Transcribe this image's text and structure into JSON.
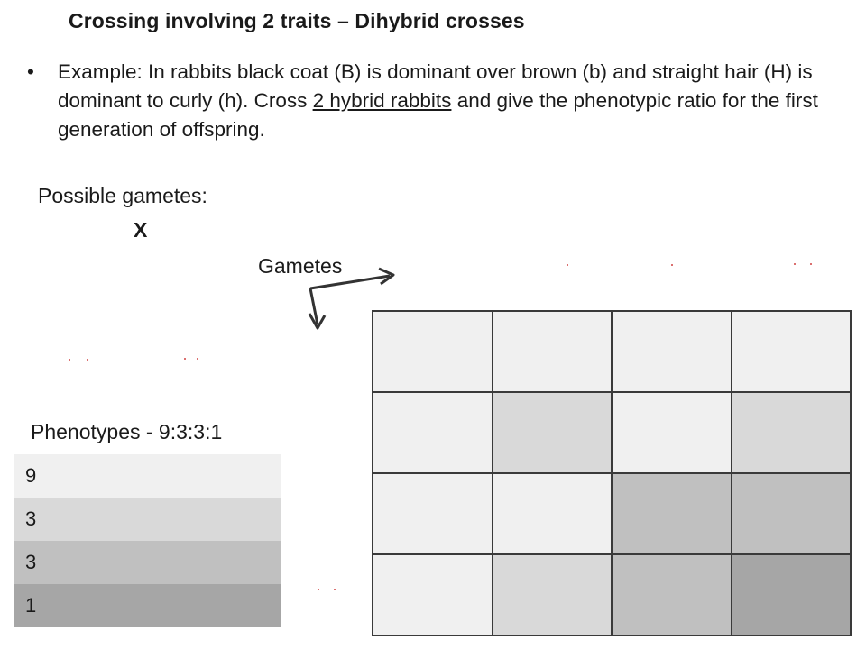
{
  "slide": {
    "title": "Crossing involving 2 traits – Dihybrid crosses",
    "bullet": {
      "marker": "•",
      "text_before": "Example: In rabbits black coat (B) is dominant over brown (b) and straight hair (H) is dominant to curly (h). Cross ",
      "text_underlined": "2 hybrid rabbits",
      "text_after": " and give the phenotypic ratio for the first generation of offspring."
    },
    "possible_gametes_label": "Possible gametes:",
    "cross_symbol": "X",
    "gametes_label": "Gametes",
    "phenotypes_title": "Phenotypes - 9:3:3:1"
  },
  "phenotype_rows": [
    {
      "value": "9",
      "color": "#f0f0f0"
    },
    {
      "value": "3",
      "color": "#d9d9d9"
    },
    {
      "value": "3",
      "color": "#c0c0c0"
    },
    {
      "value": "1",
      "color": "#a6a6a6"
    }
  ],
  "punnett_grid": [
    [
      "#f0f0f0",
      "#f0f0f0",
      "#f0f0f0",
      "#f0f0f0"
    ],
    [
      "#f0f0f0",
      "#d9d9d9",
      "#f0f0f0",
      "#d9d9d9"
    ],
    [
      "#f0f0f0",
      "#f0f0f0",
      "#c0c0c0",
      "#c0c0c0"
    ],
    [
      "#f0f0f0",
      "#d9d9d9",
      "#c0c0c0",
      "#a6a6a6"
    ]
  ],
  "colors": {
    "grid_line": "#3a3a3a",
    "arrow": "#333333",
    "speck": "#cc3333"
  }
}
